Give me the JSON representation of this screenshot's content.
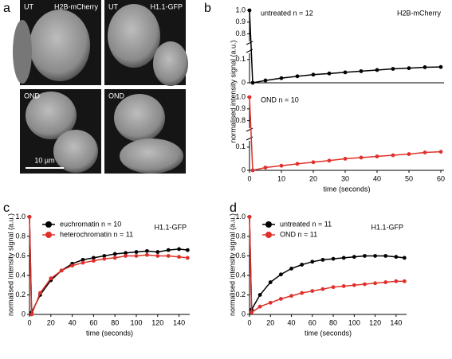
{
  "panels": [
    "a",
    "b",
    "c",
    "d"
  ],
  "images": [
    {
      "left": "UT",
      "right": "H2B-mCherry"
    },
    {
      "left": "UT",
      "right": "H1.1-GFP"
    },
    {
      "left": "OND"
    },
    {
      "left": "OND"
    }
  ],
  "scale_bar": "10 µm",
  "chart_data": [
    {
      "type": "line",
      "annotation": "H2B-mCherry",
      "ylabel": "normalised intensity signal (a.u.)",
      "xlim": [
        0,
        61
      ],
      "ylim": [
        0,
        1.0
      ],
      "ybreak": [
        0.12,
        0.75
      ],
      "yticks": [
        0,
        0.1,
        0.8,
        0.9,
        {
          "value": 1.0,
          "label": "1.0"
        }
      ],
      "legend_markers": false,
      "x": [
        0,
        1,
        5,
        10,
        15,
        20,
        25,
        30,
        35,
        40,
        45,
        50,
        55,
        60
      ],
      "series": [
        {
          "name": "untreated n = 12",
          "color": "#000000",
          "values": [
            1.0,
            0.0,
            0.01,
            0.02,
            0.028,
            0.035,
            0.04,
            0.045,
            0.05,
            0.055,
            0.06,
            0.063,
            0.067,
            0.068
          ]
        }
      ]
    },
    {
      "type": "line",
      "xlabel": "time (seconds)",
      "xlim": [
        0,
        61
      ],
      "ylim": [
        0,
        1.0
      ],
      "ybreak": [
        0.12,
        0.75
      ],
      "xticks": [
        0,
        10,
        20,
        30,
        40,
        50,
        60
      ],
      "yticks": [
        0,
        0.1,
        0.8,
        0.9,
        {
          "value": 1.0,
          "label": "1.0"
        }
      ],
      "legend_markers": false,
      "x": [
        0,
        1,
        5,
        10,
        15,
        20,
        25,
        30,
        35,
        40,
        45,
        50,
        55,
        60
      ],
      "series": [
        {
          "name": "OND n = 10",
          "color": "#e0302a",
          "values": [
            1.0,
            0.0,
            0.012,
            0.02,
            0.028,
            0.035,
            0.042,
            0.05,
            0.055,
            0.06,
            0.065,
            0.07,
            0.077,
            0.08
          ]
        }
      ]
    },
    {
      "type": "line",
      "annotation": "H1.1-GFP",
      "xlabel": "time (seconds)",
      "ylabel": "normalised intensity signal (a.u.)",
      "xlim": [
        0,
        150
      ],
      "ylim": [
        0,
        1.02
      ],
      "xticks": [
        0,
        20,
        40,
        60,
        80,
        100,
        120,
        140
      ],
      "yticks": [
        0,
        0.2,
        0.4,
        0.6,
        0.8,
        {
          "value": 1.0,
          "label": "1.0"
        }
      ],
      "legend_markers": true,
      "x": [
        0,
        2,
        10,
        20,
        30,
        40,
        50,
        60,
        70,
        80,
        90,
        100,
        110,
        120,
        130,
        140,
        148
      ],
      "series": [
        {
          "name": "euchromatin n = 10",
          "color": "#000000",
          "values": [
            1.0,
            0.02,
            0.2,
            0.35,
            0.45,
            0.52,
            0.56,
            0.58,
            0.6,
            0.62,
            0.63,
            0.64,
            0.65,
            0.64,
            0.66,
            0.67,
            0.66
          ]
        },
        {
          "name": "heterochromatin n = 11",
          "color": "#e0302a",
          "values": [
            1.0,
            0.0,
            0.22,
            0.37,
            0.45,
            0.5,
            0.53,
            0.55,
            0.57,
            0.58,
            0.6,
            0.6,
            0.61,
            0.6,
            0.6,
            0.59,
            0.58
          ]
        }
      ]
    },
    {
      "type": "line",
      "annotation": "H1.1-GFP",
      "xlabel": "time (seconds)",
      "ylabel": "normalised intensity signal (a.u.)",
      "xlim": [
        0,
        150
      ],
      "ylim": [
        0,
        1.02
      ],
      "xticks": [
        0,
        20,
        40,
        60,
        80,
        100,
        120,
        140
      ],
      "yticks": [
        0,
        0.2,
        0.4,
        0.6,
        0.8,
        {
          "value": 1.0,
          "label": "1.0"
        }
      ],
      "legend_markers": true,
      "x": [
        0,
        2,
        10,
        20,
        30,
        40,
        50,
        60,
        70,
        80,
        90,
        100,
        110,
        120,
        130,
        140,
        148
      ],
      "series": [
        {
          "name": "untreated n = 11",
          "color": "#000000",
          "values": [
            1.0,
            0.05,
            0.2,
            0.33,
            0.41,
            0.47,
            0.51,
            0.54,
            0.56,
            0.57,
            0.58,
            0.59,
            0.6,
            0.6,
            0.6,
            0.59,
            0.58
          ]
        },
        {
          "name": "OND n = 11",
          "color": "#e0302a",
          "values": [
            1.0,
            0.02,
            0.08,
            0.12,
            0.16,
            0.19,
            0.22,
            0.24,
            0.26,
            0.28,
            0.29,
            0.3,
            0.31,
            0.32,
            0.33,
            0.34,
            0.34
          ]
        }
      ]
    }
  ]
}
